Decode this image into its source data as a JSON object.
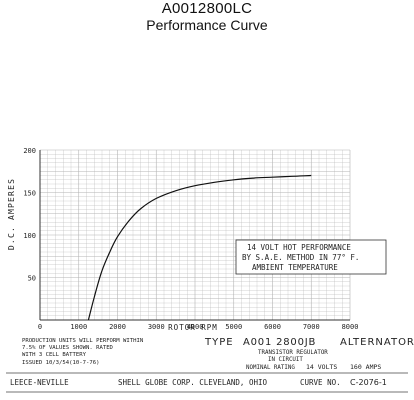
{
  "header": {
    "model": "A0012800LC",
    "subtitle": "Performance Curve"
  },
  "chart_data": {
    "type": "line",
    "xlabel": "ROTOR RPM",
    "ylabel": "D.C. AMPERES",
    "xlim": [
      0,
      8000
    ],
    "ylim": [
      0,
      200
    ],
    "x_ticks": [
      0,
      1000,
      2000,
      3000,
      4000,
      5000,
      6000,
      7000,
      8000
    ],
    "y_ticks": [
      50,
      100,
      150,
      200
    ],
    "grid": true,
    "series": [
      {
        "x": [
          1250,
          1400,
          1600,
          1800,
          2000,
          2300,
          2600,
          3000,
          3500,
          4000,
          4500,
          5000,
          5500,
          6000,
          6500,
          7000
        ],
        "y": [
          0,
          27,
          58,
          80,
          98,
          117,
          131,
          143,
          152,
          158,
          162,
          165,
          167,
          168,
          169,
          170
        ]
      }
    ],
    "annotation": [
      "14 VOLT HOT PERFORMANCE",
      "BY S.A.E. METHOD IN 77° F.",
      "AMBIENT TEMPERATURE"
    ]
  },
  "footer": {
    "note": [
      "PRODUCTION UNITS WILL PERFORM WITHIN",
      "7.5% OF VALUES SHOWN. RATED",
      "WITH 3 CELL BATTERY"
    ],
    "issued": "ISSUED 10/3/54(10-7-76)",
    "type_label": "TYPE",
    "type_value": "A001 2800JB",
    "alternator": "ALTERNATOR",
    "regulator_lines": [
      "TRANSISTOR REGULATOR",
      "IN CIRCUIT"
    ],
    "nominal_label": "NOMINAL RATING",
    "volts": "14 VOLTS",
    "amps": "160 AMPS",
    "company": "LEECE-NEVILLE",
    "maker": "SHELL GLOBE CORP. CLEVELAND, OHIO",
    "curve_label": "CURVE NO.",
    "curve_no": "C-2076-1"
  },
  "colors": {
    "grid": "#b4b4b4",
    "axis": "#333333",
    "curve": "#111111",
    "text": "#222222"
  }
}
